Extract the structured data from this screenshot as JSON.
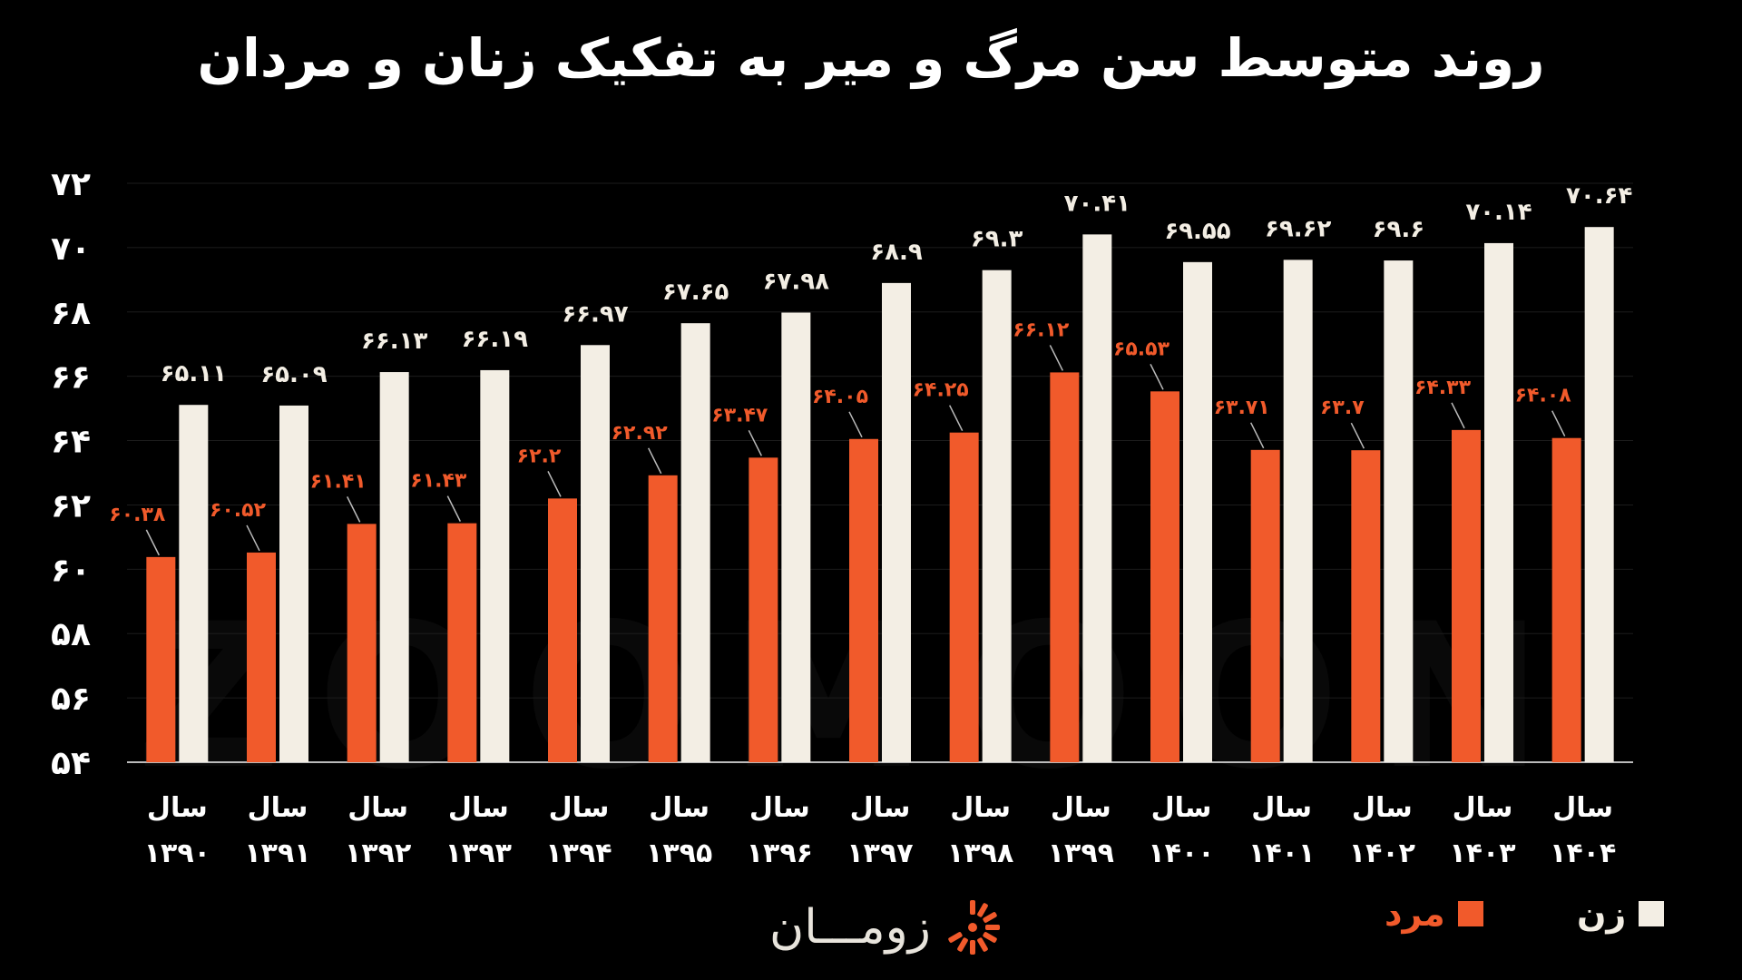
{
  "title": "روند متوسط سن مرگ و میر به تفکیک زنان و مردان",
  "watermark": "ZOOMOON",
  "brand": {
    "name": "زومـــان"
  },
  "colors": {
    "male": "#F15A2B",
    "female": "#F3EEE4",
    "background": "#000000",
    "male_label": "#F15A2B",
    "female_label": "#F3EEE4"
  },
  "chart_data": {
    "type": "bar",
    "title": "روند متوسط سن مرگ و میر به تفکیک زنان و مردان",
    "categories": [
      "۱۳۹۰",
      "۱۳۹۱",
      "۱۳۹۲",
      "۱۳۹۳",
      "۱۳۹۴",
      "۱۳۹۵",
      "۱۳۹۶",
      "۱۳۹۷",
      "۱۳۹۸",
      "۱۳۹۹",
      "۱۴۰۰",
      "۱۴۰۱",
      "۱۴۰۲",
      "۱۴۰۳",
      "۱۴۰۴"
    ],
    "category_prefix": "سال",
    "series": [
      {
        "name": "مرد",
        "color": "#F15A2B",
        "values": [
          60.38,
          60.52,
          61.41,
          61.43,
          62.2,
          62.92,
          63.47,
          64.05,
          64.25,
          66.12,
          65.53,
          63.71,
          63.7,
          64.33,
          64.08
        ],
        "labels": [
          "۶۰.۳۸",
          "۶۰.۵۲",
          "۶۱.۴۱",
          "۶۱.۴۳",
          "۶۲.۲",
          "۶۲.۹۲",
          "۶۳.۴۷",
          "۶۴.۰۵",
          "۶۴.۲۵",
          "۶۶.۱۲",
          "۶۵.۵۳",
          "۶۳.۷۱",
          "۶۳.۷",
          "۶۴.۳۳",
          "۶۴.۰۸"
        ]
      },
      {
        "name": "زن",
        "color": "#F3EEE4",
        "values": [
          65.11,
          65.09,
          66.13,
          66.19,
          66.97,
          67.65,
          67.98,
          68.9,
          69.3,
          70.41,
          69.55,
          69.62,
          69.6,
          70.14,
          70.64
        ],
        "labels": [
          "۶۵.۱۱",
          "۶۵.۰۹",
          "۶۶.۱۳",
          "۶۶.۱۹",
          "۶۶.۹۷",
          "۶۷.۶۵",
          "۶۷.۹۸",
          "۶۸.۹",
          "۶۹.۳",
          "۷۰.۴۱",
          "۶۹.۵۵",
          "۶۹.۶۲",
          "۶۹.۶",
          "۷۰.۱۴",
          "۷۰.۶۴"
        ]
      }
    ],
    "ylim": [
      54,
      72
    ],
    "yticks": [
      54,
      56,
      58,
      60,
      62,
      64,
      66,
      68,
      70,
      72
    ],
    "ytick_labels": [
      "۵۴",
      "۵۶",
      "۵۸",
      "۶۰",
      "۶۲",
      "۶۴",
      "۶۶",
      "۶۸",
      "۷۰",
      "۷۲"
    ],
    "grid": true,
    "legend": {
      "position": "bottom-right",
      "entries": [
        "زن",
        "مرد"
      ]
    }
  }
}
